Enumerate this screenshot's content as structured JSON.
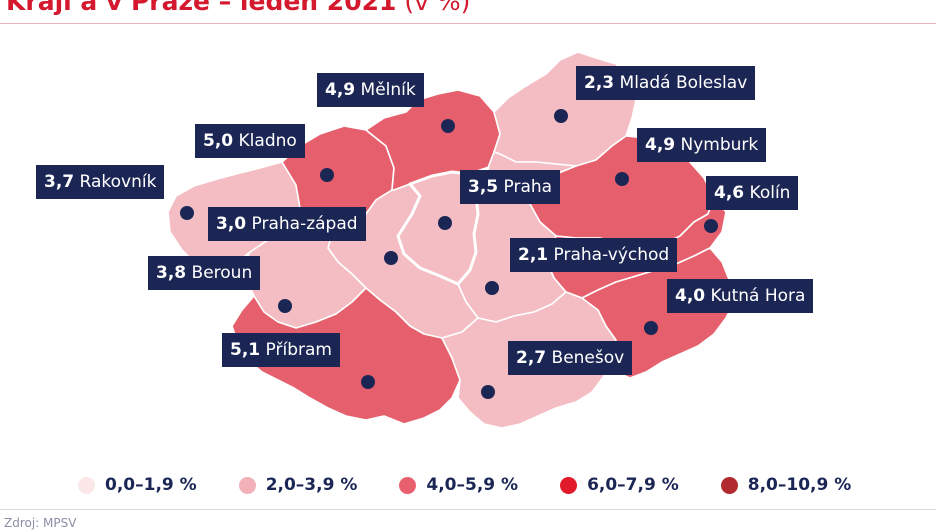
{
  "title": {
    "text": "Kraji a v Praze – leden 2021",
    "unit": " (v %)"
  },
  "districts": [
    {
      "id": "melnik",
      "value": "4,9",
      "name": "Mělník",
      "class": "4,0–5,9 %"
    },
    {
      "id": "mlada-boleslav",
      "value": "2,3",
      "name": "Mladá Boleslav",
      "class": "2,0–3,9 %"
    },
    {
      "id": "kladno",
      "value": "5,0",
      "name": "Kladno",
      "class": "4,0–5,9 %"
    },
    {
      "id": "nymburk",
      "value": "4,9",
      "name": "Nymburk",
      "class": "4,0–5,9 %"
    },
    {
      "id": "rakovnik",
      "value": "3,7",
      "name": "Rakovník",
      "class": "2,0–3,9 %"
    },
    {
      "id": "praha",
      "value": "3,5",
      "name": "Praha",
      "class": "2,0–3,9 %"
    },
    {
      "id": "kolin",
      "value": "4,6",
      "name": "Kolín",
      "class": "4,0–5,9 %"
    },
    {
      "id": "praha-zapad",
      "value": "3,0",
      "name": "Praha-západ",
      "class": "2,0–3,9 %"
    },
    {
      "id": "praha-vychod",
      "value": "2,1",
      "name": "Praha-východ",
      "class": "2,0–3,9 %"
    },
    {
      "id": "beroun",
      "value": "3,8",
      "name": "Beroun",
      "class": "2,0–3,9 %"
    },
    {
      "id": "kutna-hora",
      "value": "4,0",
      "name": "Kutná Hora",
      "class": "4,0–5,9 %"
    },
    {
      "id": "pribram",
      "value": "5,1",
      "name": "Příbram",
      "class": "4,0–5,9 %"
    },
    {
      "id": "benesov",
      "value": "2,7",
      "name": "Benešov",
      "class": "2,0–3,9 %"
    }
  ],
  "legend": [
    {
      "label": "0,0–1,9 %",
      "color": "#fbe6e8"
    },
    {
      "label": "2,0–3,9 %",
      "color": "#f2b1b8"
    },
    {
      "label": "4,0–5,9 %",
      "color": "#e8606d"
    },
    {
      "label": "6,0–7,9 %",
      "color": "#e21b2b"
    },
    {
      "label": "8,0–10,9 %",
      "color": "#b02a30"
    }
  ],
  "colors": {
    "label_bg": "#1b2655",
    "title": "#d4182d",
    "light": "#f3bdc3",
    "medium": "#e5606c",
    "border": "#ffffff"
  },
  "source": "Zdroj: MPSV"
}
